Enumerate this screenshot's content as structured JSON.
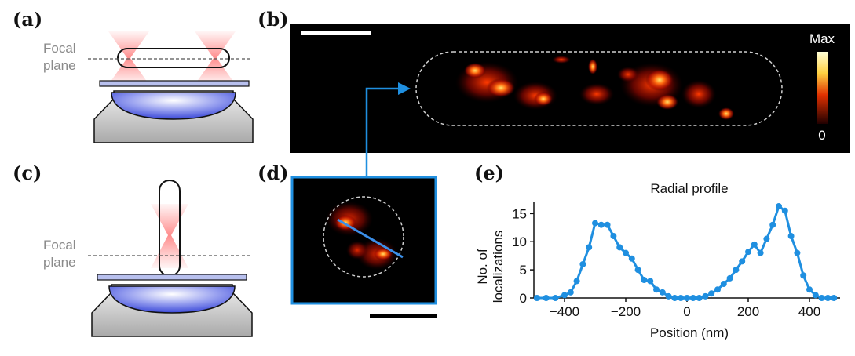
{
  "panels": {
    "a": {
      "label": "(a)",
      "focal_line1": "Focal",
      "focal_line2": "plane"
    },
    "b": {
      "label": "(b)",
      "colorbar_max": "Max",
      "colorbar_min": "0"
    },
    "c": {
      "label": "(c)",
      "focal_line1": "Focal",
      "focal_line2": "plane"
    },
    "d": {
      "label": "(d)"
    },
    "e": {
      "label": "(e)"
    }
  },
  "colors": {
    "accent_blue": "#1f8fe0",
    "heat_low": "#3a0000",
    "heat_high": "#ffffc8"
  },
  "chart_data": {
    "type": "line",
    "title": "Radial profile",
    "xlabel": "Position (nm)",
    "ylabel_line1": "No. of",
    "ylabel_line2": "localizations",
    "xlim": [
      -500,
      500
    ],
    "ylim": [
      0,
      17
    ],
    "xticks": [
      -400,
      -200,
      0,
      200,
      400
    ],
    "yticks": [
      0,
      5,
      10,
      15
    ],
    "x": [
      -490,
      -460,
      -430,
      -400,
      -380,
      -360,
      -340,
      -320,
      -300,
      -280,
      -260,
      -240,
      -220,
      -200,
      -180,
      -160,
      -140,
      -120,
      -100,
      -80,
      -60,
      -40,
      -20,
      0,
      20,
      40,
      60,
      80,
      100,
      120,
      140,
      160,
      180,
      200,
      220,
      240,
      260,
      280,
      300,
      320,
      340,
      360,
      380,
      400,
      420,
      440,
      460,
      480
    ],
    "y": [
      0,
      0,
      0,
      0.5,
      1,
      3,
      6,
      9,
      13.3,
      13,
      13,
      11,
      9,
      8,
      7,
      5,
      3.2,
      3,
      1.5,
      1,
      0.3,
      0,
      0,
      0,
      0,
      0,
      0.3,
      0.8,
      1.5,
      2.5,
      3.5,
      5,
      6.5,
      8.2,
      9.5,
      8,
      10.5,
      13,
      16.3,
      15.5,
      11,
      8,
      4,
      1.5,
      0.5,
      0,
      0,
      0
    ]
  }
}
